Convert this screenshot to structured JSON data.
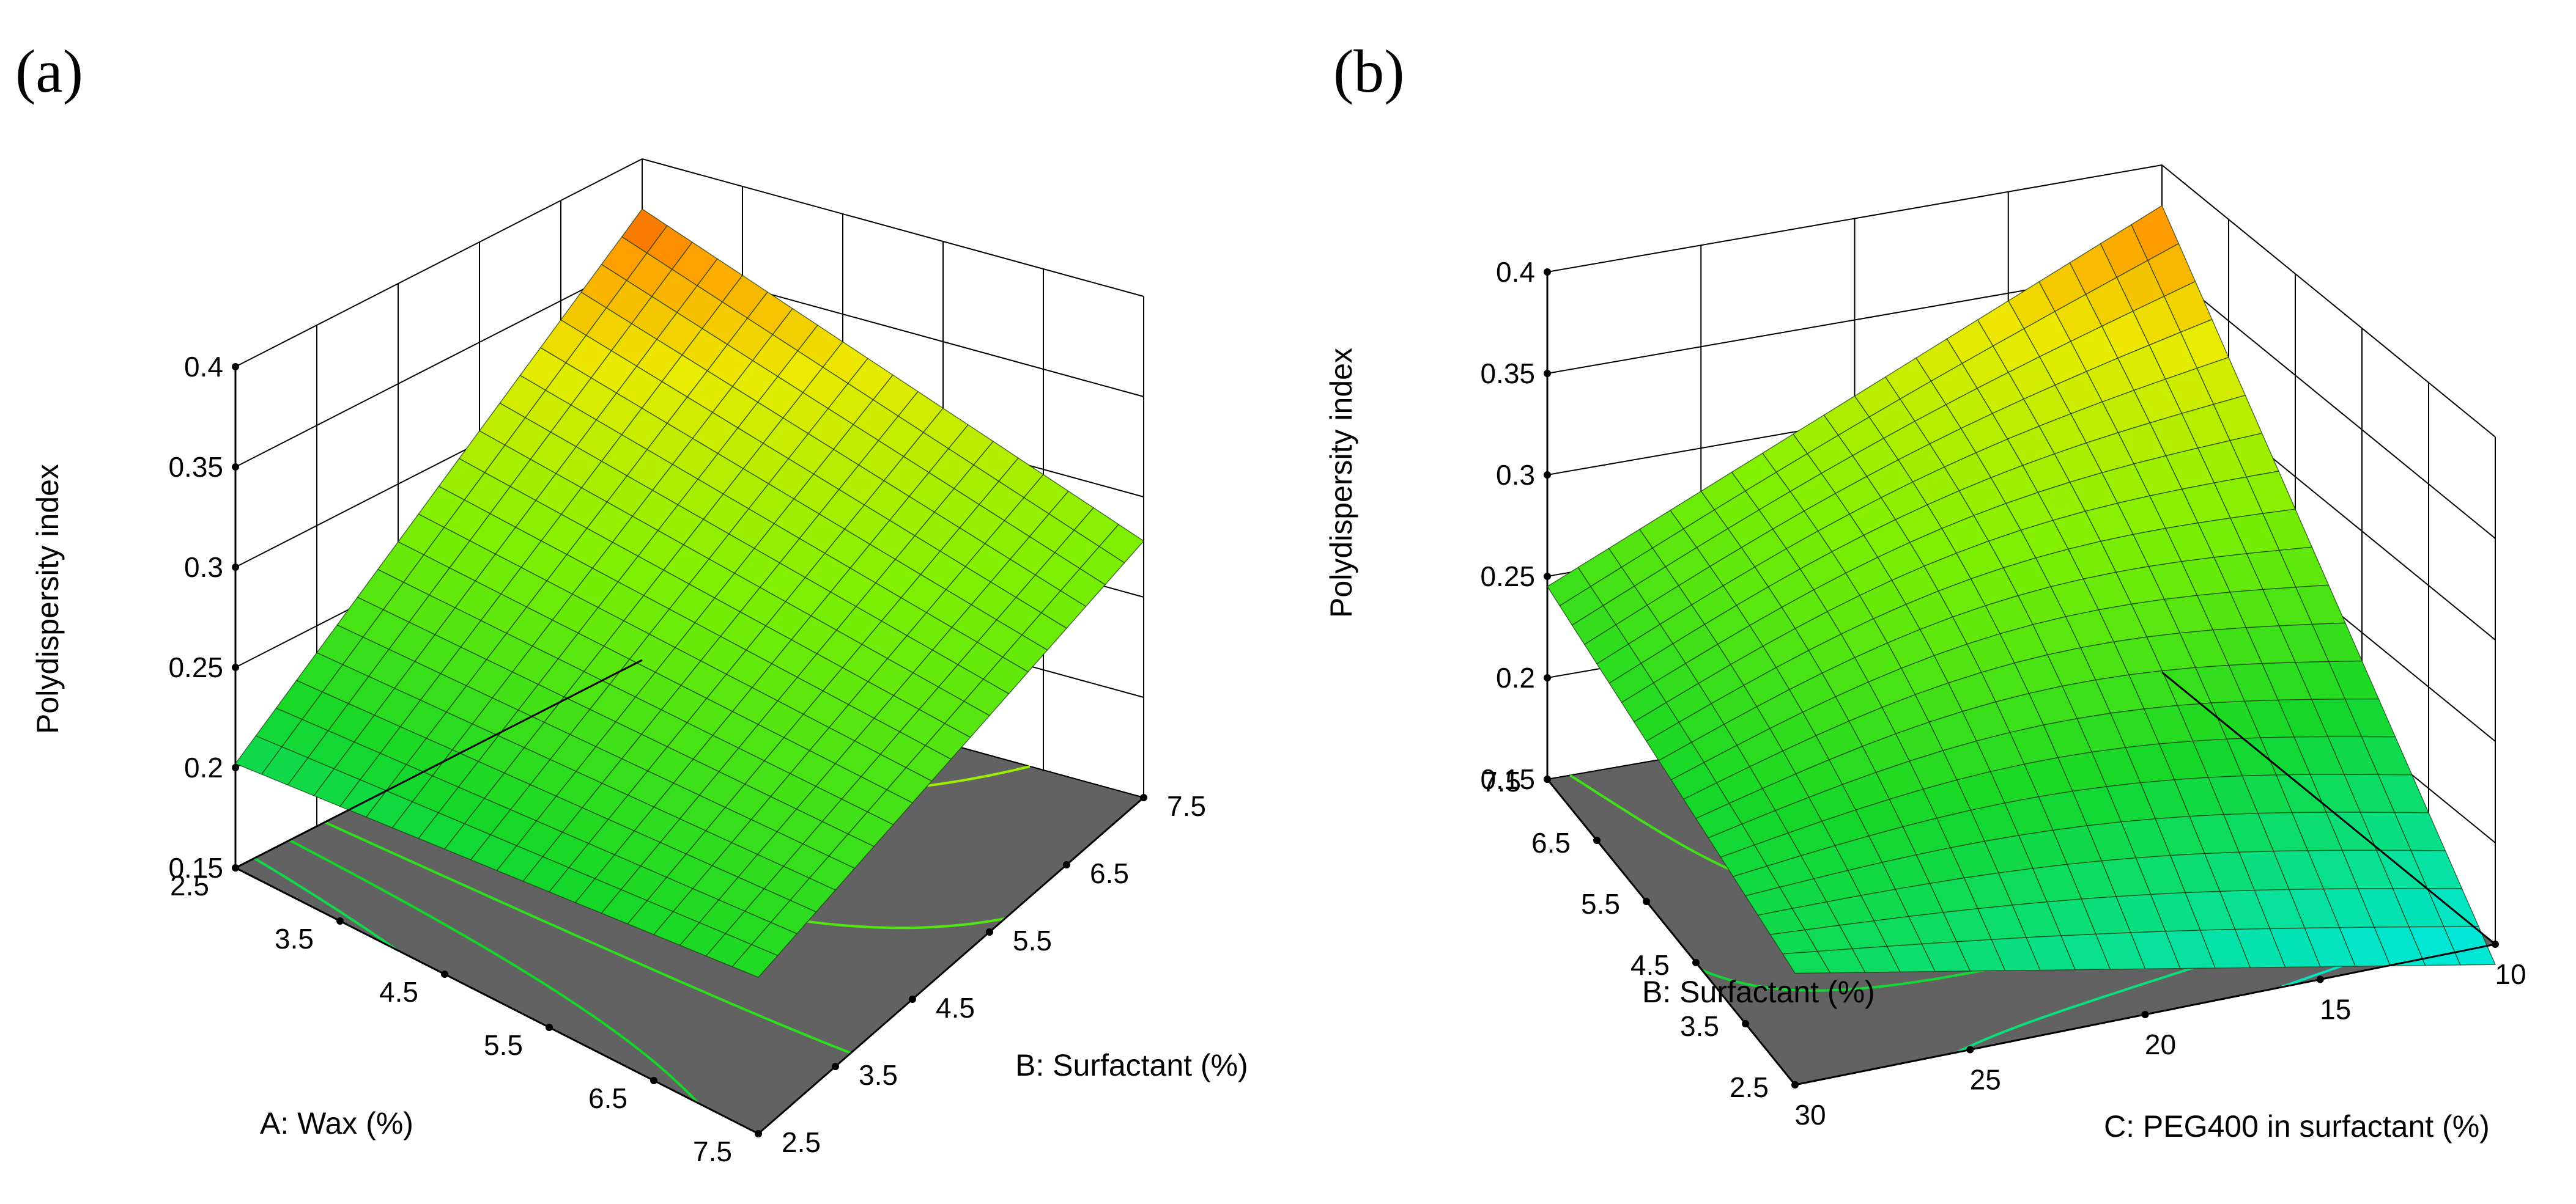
{
  "chart_data": [
    {
      "type": "surface3d",
      "panel_label": "(a)",
      "zlabel": "Polydispersity index",
      "xlabel": "A: Wax (%)",
      "ylabel": "B: Surfactant (%)",
      "x_ticks": [
        "2.5",
        "3.5",
        "4.5",
        "5.5",
        "6.5",
        "7.5"
      ],
      "y_ticks": [
        "2.5",
        "3.5",
        "4.5",
        "5.5",
        "6.5",
        "7.5"
      ],
      "z_ticks": [
        "0.15",
        "0.2",
        "0.25",
        "0.3",
        "0.35",
        "0.4"
      ],
      "xlim": [
        2.5,
        7.5
      ],
      "ylim": [
        2.5,
        7.5
      ],
      "zlim": [
        0.15,
        0.4
      ],
      "surface_corners": {
        "x_low_y_low": 0.202,
        "x_high_y_low": 0.228,
        "x_low_y_high": 0.375,
        "x_high_y_high": 0.278
      },
      "floor_contours": "contour projection of response on floor",
      "grid_steps": 20
    },
    {
      "type": "surface3d",
      "panel_label": "(b)",
      "zlabel": "Polydispersity index",
      "xlabel": "C: PEG400 in surfactant (%)",
      "ylabel": "B: Surfactant (%)",
      "x_ticks": [
        "10",
        "15",
        "20",
        "25",
        "30"
      ],
      "y_ticks": [
        "2.5",
        "3.5",
        "4.5",
        "5.5",
        "6.5",
        "7.5"
      ],
      "z_ticks": [
        "0.15",
        "0.2",
        "0.25",
        "0.3",
        "0.35",
        "0.4"
      ],
      "xlim": [
        10,
        30
      ],
      "ylim": [
        2.5,
        7.5
      ],
      "zlim": [
        0.15,
        0.4
      ],
      "surface_corners": {
        "c30_b7_5": 0.245,
        "c10_b7_5": 0.38,
        "c10_b2_5": 0.14,
        "c30_b2_5": 0.205
      },
      "floor_contours": "contour projection of response on floor",
      "grid_steps": 20
    }
  ]
}
